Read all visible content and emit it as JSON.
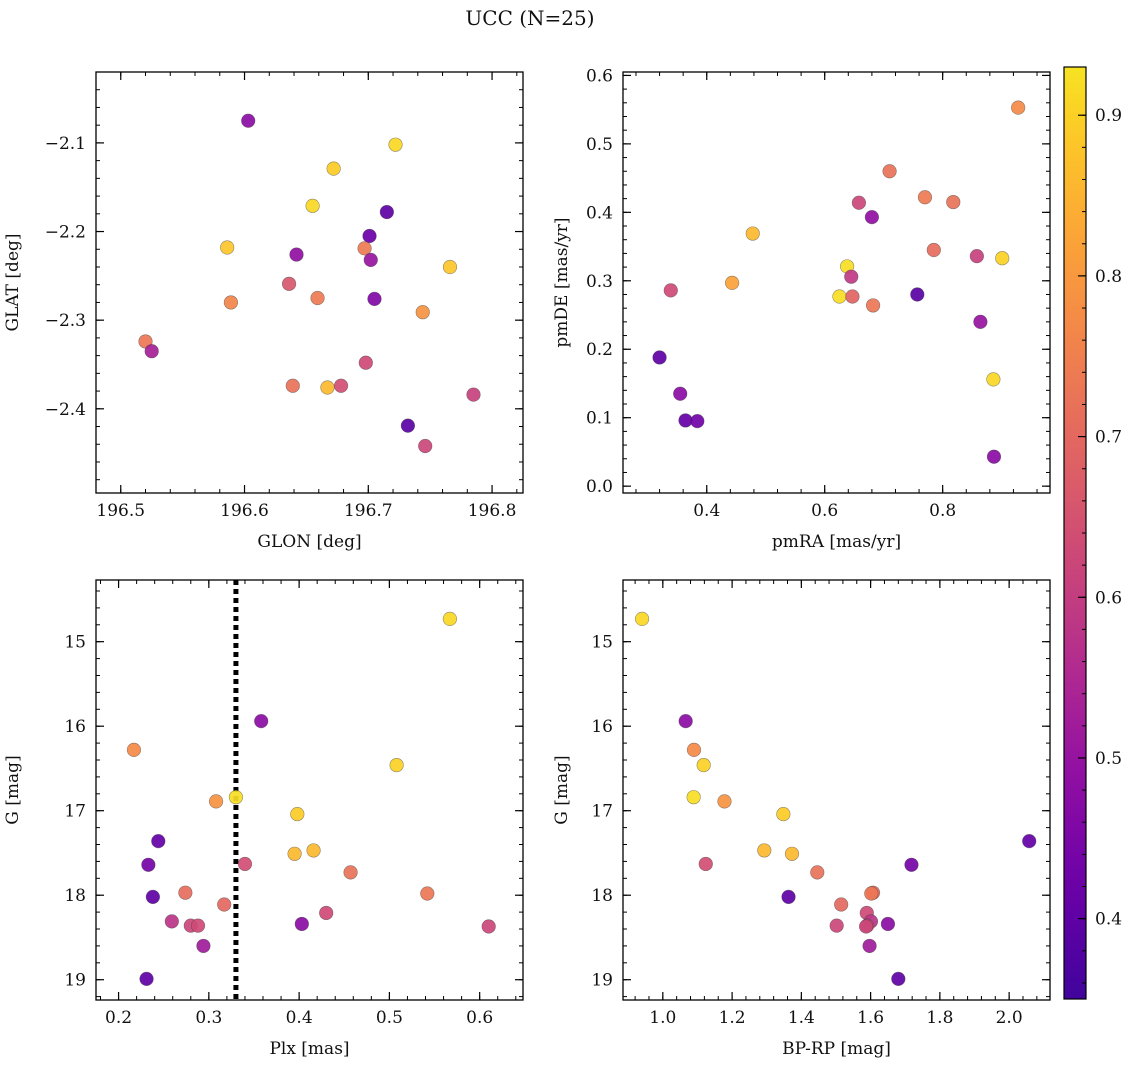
{
  "figure_title": "UCC (N=25)",
  "colorbar": {
    "cmap": "plasma",
    "range": [
      0.35,
      0.93
    ],
    "ticks": [
      "0.4",
      "0.5",
      "0.6",
      "0.7",
      "0.8",
      "0.9"
    ]
  },
  "chart_data": [
    {
      "type": "scatter",
      "xlabel": "GLON [deg]",
      "ylabel": "GLAT [deg]",
      "xlim": [
        196.48,
        196.825
      ],
      "ylim": [
        -2.495,
        -2.02
      ],
      "y_inverted": false,
      "xticks": [
        "196.5",
        "196.6",
        "196.7",
        "196.8"
      ],
      "yticks": [
        "−2.1",
        "−2.2",
        "−2.3",
        "−2.4"
      ],
      "points": [
        {
          "x": 196.603,
          "y": -2.075,
          "c": 0.48
        },
        {
          "x": 196.722,
          "y": -2.102,
          "c": 0.91
        },
        {
          "x": 196.672,
          "y": -2.129,
          "c": 0.89
        },
        {
          "x": 196.655,
          "y": -2.171,
          "c": 0.91
        },
        {
          "x": 196.715,
          "y": -2.178,
          "c": 0.4
        },
        {
          "x": 196.701,
          "y": -2.205,
          "c": 0.42
        },
        {
          "x": 196.586,
          "y": -2.218,
          "c": 0.88
        },
        {
          "x": 196.697,
          "y": -2.219,
          "c": 0.74
        },
        {
          "x": 196.642,
          "y": -2.226,
          "c": 0.49
        },
        {
          "x": 196.702,
          "y": -2.232,
          "c": 0.5
        },
        {
          "x": 196.766,
          "y": -2.24,
          "c": 0.88
        },
        {
          "x": 196.636,
          "y": -2.259,
          "c": 0.66
        },
        {
          "x": 196.659,
          "y": -2.275,
          "c": 0.74
        },
        {
          "x": 196.705,
          "y": -2.276,
          "c": 0.46
        },
        {
          "x": 196.589,
          "y": -2.28,
          "c": 0.76
        },
        {
          "x": 196.744,
          "y": -2.291,
          "c": 0.79
        },
        {
          "x": 196.52,
          "y": -2.324,
          "c": 0.73
        },
        {
          "x": 196.525,
          "y": -2.335,
          "c": 0.53
        },
        {
          "x": 196.698,
          "y": -2.348,
          "c": 0.63
        },
        {
          "x": 196.639,
          "y": -2.374,
          "c": 0.72
        },
        {
          "x": 196.678,
          "y": -2.374,
          "c": 0.64
        },
        {
          "x": 196.667,
          "y": -2.376,
          "c": 0.86
        },
        {
          "x": 196.785,
          "y": -2.384,
          "c": 0.61
        },
        {
          "x": 196.732,
          "y": -2.419,
          "c": 0.39
        },
        {
          "x": 196.746,
          "y": -2.442,
          "c": 0.62
        }
      ]
    },
    {
      "type": "scatter",
      "xlabel": "pmRA [mas/yr]",
      "ylabel": "pmDE [mas/yr]",
      "xlim": [
        0.258,
        0.982
      ],
      "ylim": [
        -0.01,
        0.605
      ],
      "y_inverted": false,
      "xticks": [
        "0.4",
        "0.6",
        "0.8"
      ],
      "yticks": [
        "0.0",
        "0.1",
        "0.2",
        "0.3",
        "0.4",
        "0.5",
        "0.6"
      ],
      "points": [
        {
          "x": 0.928,
          "y": 0.553,
          "c": 0.77
        },
        {
          "x": 0.71,
          "y": 0.46,
          "c": 0.72
        },
        {
          "x": 0.77,
          "y": 0.422,
          "c": 0.74
        },
        {
          "x": 0.818,
          "y": 0.415,
          "c": 0.72
        },
        {
          "x": 0.658,
          "y": 0.414,
          "c": 0.62
        },
        {
          "x": 0.68,
          "y": 0.393,
          "c": 0.49
        },
        {
          "x": 0.478,
          "y": 0.369,
          "c": 0.86
        },
        {
          "x": 0.785,
          "y": 0.345,
          "c": 0.71
        },
        {
          "x": 0.858,
          "y": 0.336,
          "c": 0.61
        },
        {
          "x": 0.901,
          "y": 0.333,
          "c": 0.9
        },
        {
          "x": 0.638,
          "y": 0.321,
          "c": 0.92
        },
        {
          "x": 0.645,
          "y": 0.306,
          "c": 0.59
        },
        {
          "x": 0.443,
          "y": 0.297,
          "c": 0.82
        },
        {
          "x": 0.339,
          "y": 0.286,
          "c": 0.63
        },
        {
          "x": 0.757,
          "y": 0.28,
          "c": 0.39
        },
        {
          "x": 0.625,
          "y": 0.277,
          "c": 0.92
        },
        {
          "x": 0.647,
          "y": 0.277,
          "c": 0.69
        },
        {
          "x": 0.682,
          "y": 0.264,
          "c": 0.73
        },
        {
          "x": 0.864,
          "y": 0.24,
          "c": 0.5
        },
        {
          "x": 0.32,
          "y": 0.188,
          "c": 0.4
        },
        {
          "x": 0.886,
          "y": 0.156,
          "c": 0.91
        },
        {
          "x": 0.355,
          "y": 0.135,
          "c": 0.48
        },
        {
          "x": 0.364,
          "y": 0.096,
          "c": 0.41
        },
        {
          "x": 0.384,
          "y": 0.095,
          "c": 0.43
        },
        {
          "x": 0.887,
          "y": 0.043,
          "c": 0.48
        }
      ]
    },
    {
      "type": "scatter",
      "xlabel": "Plx [mas]",
      "ylabel": "G [mag]",
      "xlim": [
        0.175,
        0.648
      ],
      "ylim": [
        14.27,
        19.24
      ],
      "y_inverted": true,
      "xticks": [
        "0.2",
        "0.3",
        "0.4",
        "0.5",
        "0.6"
      ],
      "yticks": [
        "15",
        "16",
        "17",
        "18",
        "19"
      ],
      "vline": {
        "x": 0.33,
        "style": "dotted",
        "color": "#000000"
      },
      "points": [
        {
          "x": 0.567,
          "y": 14.73,
          "c": 0.91
        },
        {
          "x": 0.358,
          "y": 15.94,
          "c": 0.48
        },
        {
          "x": 0.217,
          "y": 16.28,
          "c": 0.77
        },
        {
          "x": 0.508,
          "y": 16.46,
          "c": 0.9
        },
        {
          "x": 0.33,
          "y": 16.84,
          "c": 0.92
        },
        {
          "x": 0.308,
          "y": 16.89,
          "c": 0.79
        },
        {
          "x": 0.398,
          "y": 17.04,
          "c": 0.89
        },
        {
          "x": 0.244,
          "y": 17.36,
          "c": 0.41
        },
        {
          "x": 0.416,
          "y": 17.47,
          "c": 0.86
        },
        {
          "x": 0.395,
          "y": 17.51,
          "c": 0.86
        },
        {
          "x": 0.34,
          "y": 17.63,
          "c": 0.64
        },
        {
          "x": 0.233,
          "y": 17.64,
          "c": 0.44
        },
        {
          "x": 0.457,
          "y": 17.73,
          "c": 0.72
        },
        {
          "x": 0.274,
          "y": 17.97,
          "c": 0.71
        },
        {
          "x": 0.542,
          "y": 17.98,
          "c": 0.73
        },
        {
          "x": 0.238,
          "y": 18.02,
          "c": 0.4
        },
        {
          "x": 0.317,
          "y": 18.11,
          "c": 0.7
        },
        {
          "x": 0.43,
          "y": 18.21,
          "c": 0.63
        },
        {
          "x": 0.259,
          "y": 18.31,
          "c": 0.58
        },
        {
          "x": 0.403,
          "y": 18.34,
          "c": 0.48
        },
        {
          "x": 0.28,
          "y": 18.36,
          "c": 0.62
        },
        {
          "x": 0.288,
          "y": 18.36,
          "c": 0.63
        },
        {
          "x": 0.61,
          "y": 18.37,
          "c": 0.62
        },
        {
          "x": 0.294,
          "y": 18.6,
          "c": 0.52
        },
        {
          "x": 0.231,
          "y": 18.99,
          "c": 0.4
        }
      ]
    },
    {
      "type": "scatter",
      "xlabel": "BP-RP [mag]",
      "ylabel": "G [mag]",
      "xlim": [
        0.885,
        2.118
      ],
      "ylim": [
        14.27,
        19.24
      ],
      "y_inverted": true,
      "xticks": [
        "1.0",
        "1.2",
        "1.4",
        "1.6",
        "1.8",
        "2.0"
      ],
      "yticks": [
        "15",
        "16",
        "17",
        "18",
        "19"
      ],
      "points": [
        {
          "x": 0.94,
          "y": 14.73,
          "c": 0.91
        },
        {
          "x": 1.066,
          "y": 15.94,
          "c": 0.48
        },
        {
          "x": 1.09,
          "y": 16.28,
          "c": 0.77
        },
        {
          "x": 1.118,
          "y": 16.46,
          "c": 0.9
        },
        {
          "x": 1.089,
          "y": 16.84,
          "c": 0.92
        },
        {
          "x": 1.178,
          "y": 16.89,
          "c": 0.79
        },
        {
          "x": 1.348,
          "y": 17.04,
          "c": 0.89
        },
        {
          "x": 2.058,
          "y": 17.36,
          "c": 0.41
        },
        {
          "x": 1.293,
          "y": 17.47,
          "c": 0.86
        },
        {
          "x": 1.373,
          "y": 17.51,
          "c": 0.86
        },
        {
          "x": 1.124,
          "y": 17.63,
          "c": 0.64
        },
        {
          "x": 1.718,
          "y": 17.64,
          "c": 0.44
        },
        {
          "x": 1.446,
          "y": 17.73,
          "c": 0.72
        },
        {
          "x": 1.607,
          "y": 17.97,
          "c": 0.71
        },
        {
          "x": 1.602,
          "y": 17.98,
          "c": 0.73
        },
        {
          "x": 1.363,
          "y": 18.02,
          "c": 0.4
        },
        {
          "x": 1.515,
          "y": 18.11,
          "c": 0.7
        },
        {
          "x": 1.589,
          "y": 18.21,
          "c": 0.63
        },
        {
          "x": 1.601,
          "y": 18.31,
          "c": 0.58
        },
        {
          "x": 1.65,
          "y": 18.34,
          "c": 0.48
        },
        {
          "x": 1.502,
          "y": 18.36,
          "c": 0.62
        },
        {
          "x": 1.59,
          "y": 18.36,
          "c": 0.63
        },
        {
          "x": 1.587,
          "y": 18.37,
          "c": 0.62
        },
        {
          "x": 1.597,
          "y": 18.6,
          "c": 0.52
        },
        {
          "x": 1.68,
          "y": 18.99,
          "c": 0.4
        }
      ]
    }
  ]
}
